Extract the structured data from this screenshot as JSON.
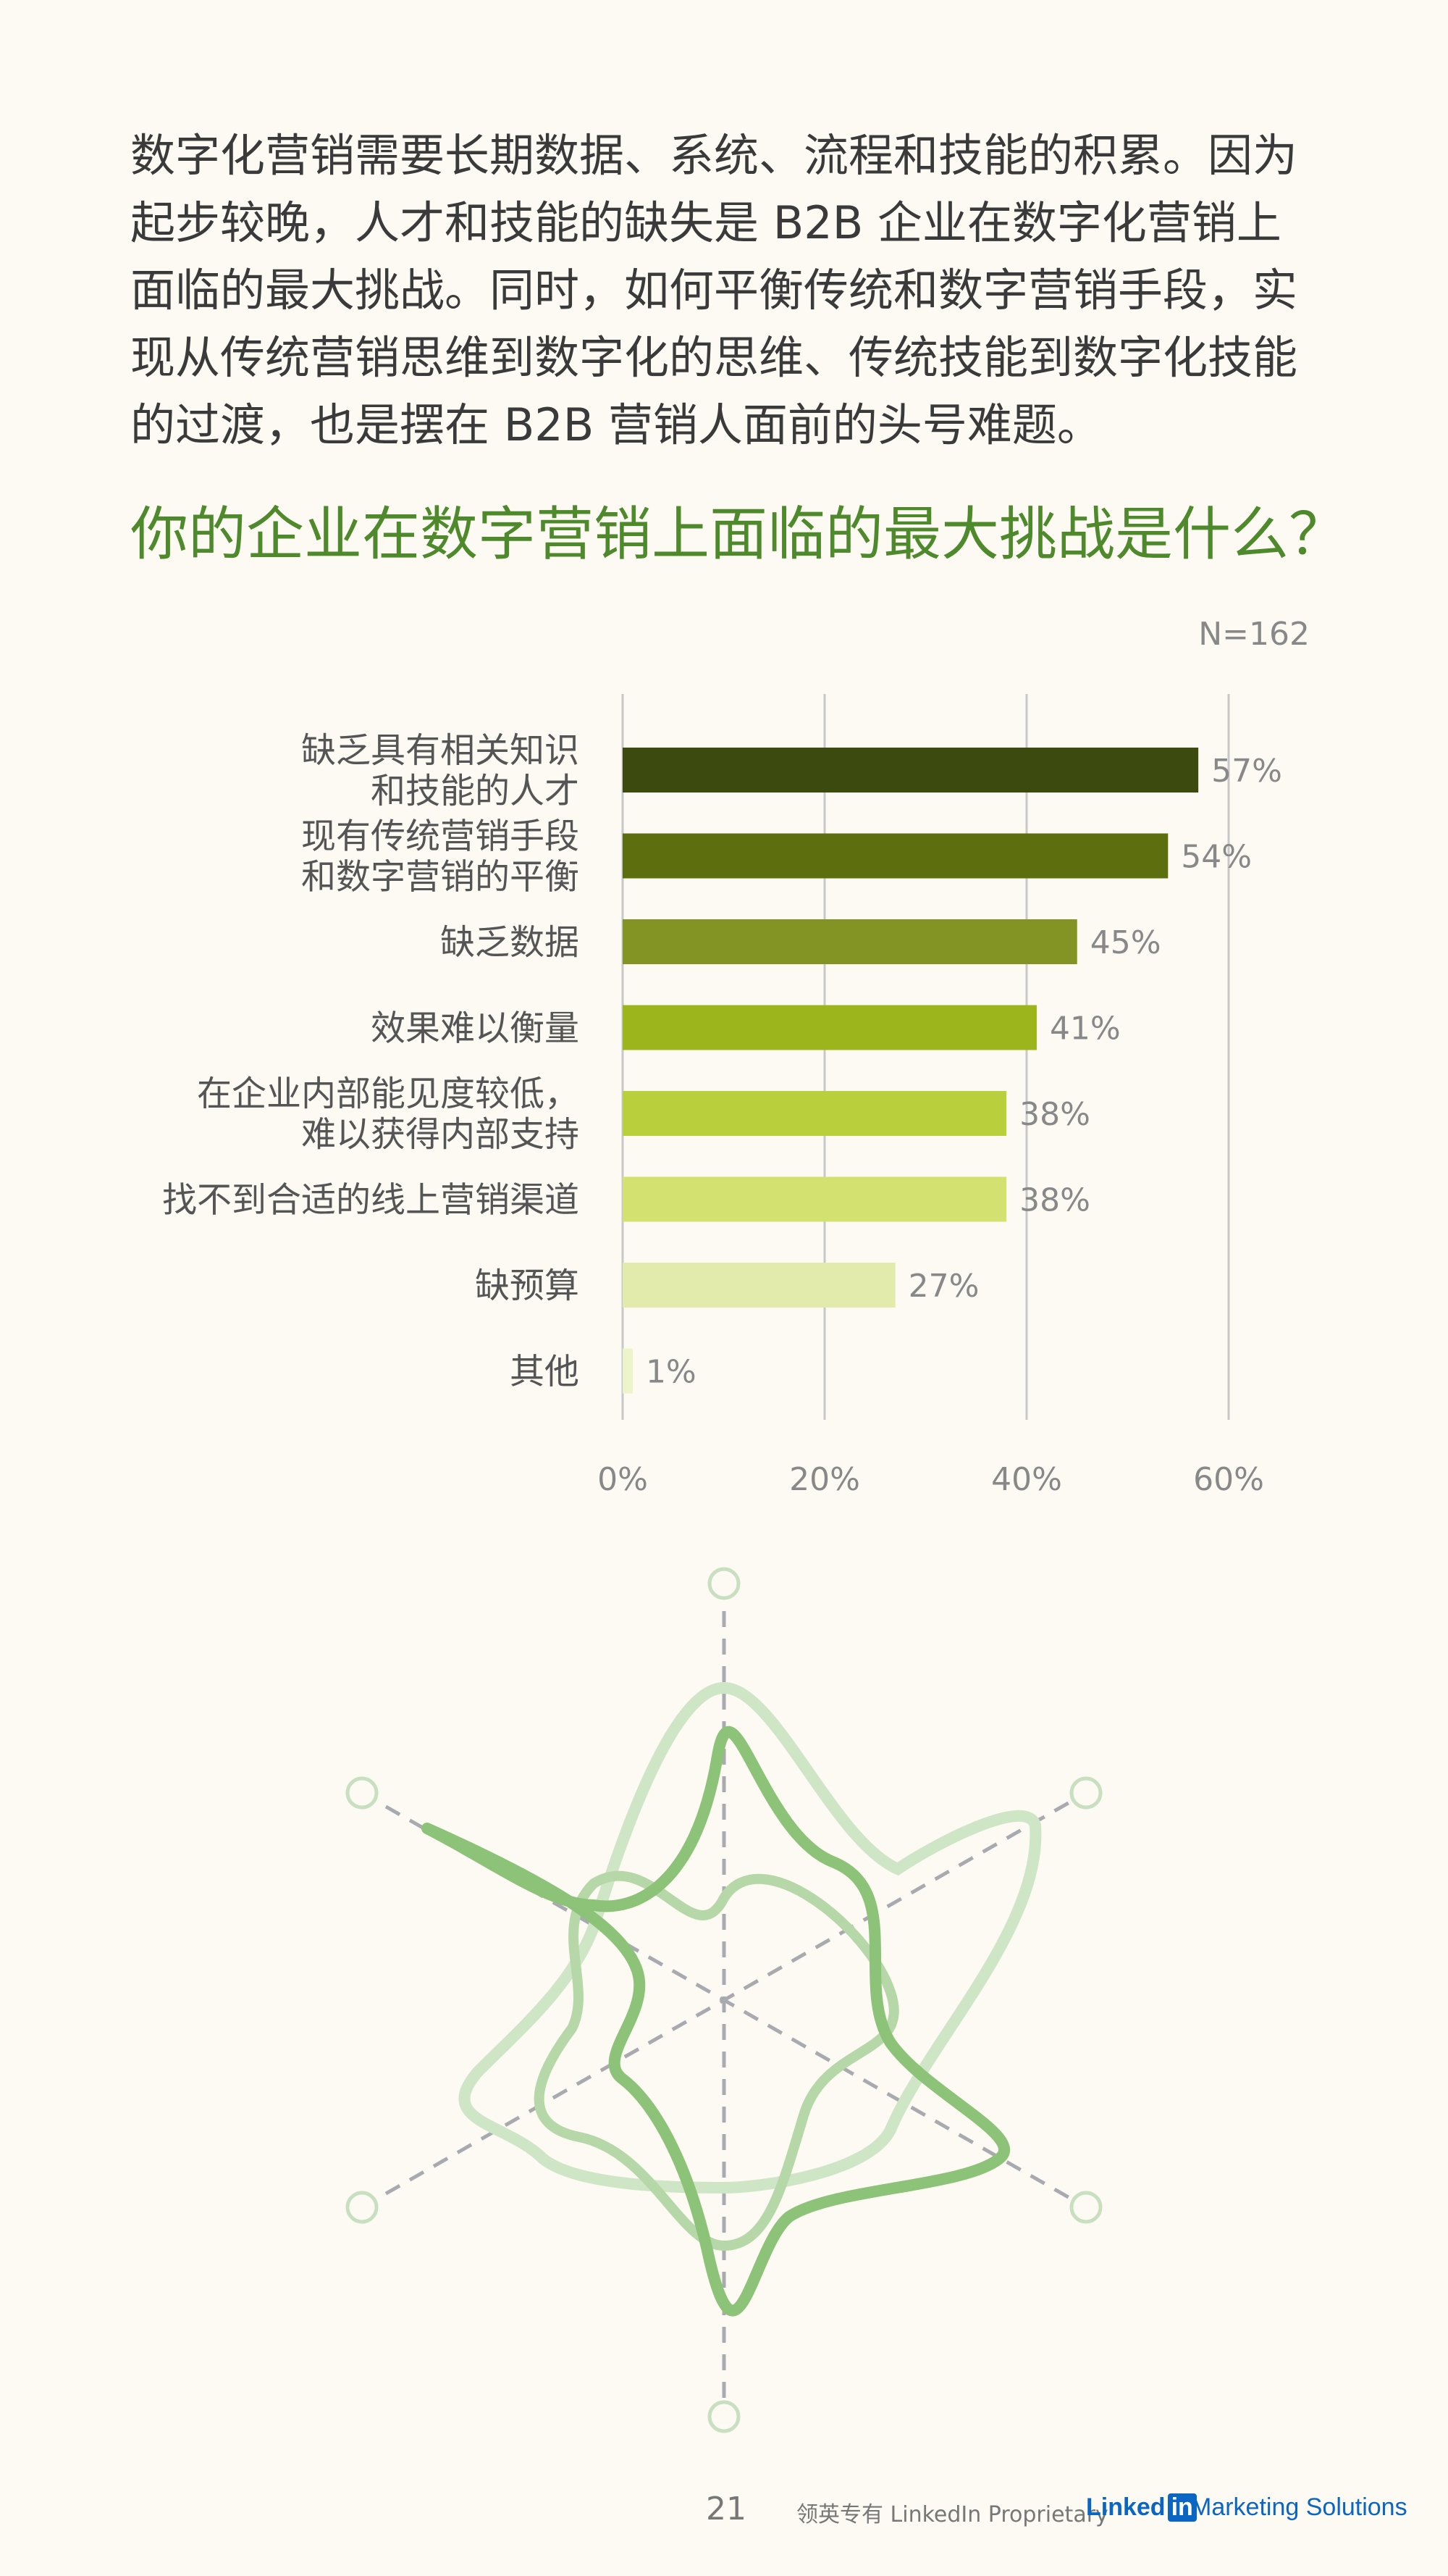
{
  "intro_text": "数字化营销需要长期数据、系统、流程和技能的积累。因为起步较晚，人才和技能的缺失是 B2B 企业在数字化营销上面临的最大挑战。同时，如何平衡传统和数字营销手段，实现从传统营销思维到数字化的思维、传统技能到数字化技能的过渡，也是摆在 B2B 营销人面前的头号难题。",
  "chart_data": {
    "type": "bar",
    "orientation": "horizontal",
    "title": "你的企业在数字营销上面临的最大挑战是什么？",
    "sample_note": "N=162",
    "categories": [
      [
        "缺乏具有相关知识",
        "和技能的人才"
      ],
      [
        "现有传统营销手段",
        "和数字营销的平衡"
      ],
      [
        "缺乏数据"
      ],
      [
        "效果难以衡量"
      ],
      [
        "在企业内部能见度较低，",
        "难以获得内部支持"
      ],
      [
        "找不到合适的线上营销渠道"
      ],
      [
        "缺预算"
      ],
      [
        "其他"
      ]
    ],
    "values": [
      57,
      54,
      45,
      41,
      38,
      38,
      27,
      1
    ],
    "value_labels": [
      "57%",
      "54%",
      "45%",
      "41%",
      "38%",
      "38%",
      "27%",
      "1%"
    ],
    "xlim": [
      0,
      60
    ],
    "x_ticks": [
      0,
      20,
      40,
      60
    ],
    "x_tick_labels": [
      "0%",
      "20%",
      "40%",
      "60%"
    ],
    "grid": "vertical",
    "bar_colors": [
      "#3c4a10",
      "#5c6e0e",
      "#849424",
      "#9db51c",
      "#b9cf3b",
      "#d2e170",
      "#e2ebab",
      "#edf3cb"
    ]
  },
  "footer": {
    "page_number": "21",
    "proprietary": "领英专有 LinkedIn Proprietary",
    "brand_prefix": "Linked",
    "brand_in": "in",
    "brand_suffix": "Marketing Solutions"
  }
}
